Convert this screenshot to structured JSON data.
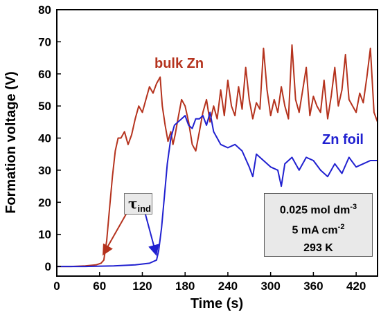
{
  "chart_data": {
    "type": "line",
    "xlabel": "Time (s)",
    "ylabel": "Formation voltage (V)",
    "xlim": [
      0,
      450
    ],
    "ylim": [
      -3,
      80
    ],
    "xticks": [
      0,
      60,
      120,
      180,
      240,
      300,
      360,
      420
    ],
    "yticks": [
      0,
      10,
      20,
      30,
      40,
      50,
      60,
      70,
      80
    ],
    "grid": false,
    "series": [
      {
        "name": "bulk Zn",
        "color": "#b5331e",
        "x": [
          0,
          20,
          40,
          55,
          62,
          66,
          70,
          74,
          78,
          82,
          86,
          90,
          95,
          100,
          105,
          110,
          115,
          120,
          125,
          130,
          135,
          140,
          145,
          148,
          152,
          156,
          160,
          163,
          166,
          170,
          175,
          180,
          185,
          190,
          195,
          200,
          205,
          210,
          215,
          220,
          225,
          230,
          235,
          240,
          245,
          250,
          255,
          260,
          265,
          270,
          275,
          280,
          285,
          290,
          295,
          300,
          305,
          310,
          315,
          320,
          325,
          330,
          335,
          340,
          345,
          350,
          355,
          360,
          365,
          370,
          375,
          380,
          385,
          390,
          395,
          400,
          405,
          410,
          415,
          420,
          425,
          430,
          435,
          440,
          445,
          450
        ],
        "y": [
          0,
          0,
          0.2,
          0.5,
          1,
          2,
          8,
          18,
          28,
          36,
          40,
          40,
          42,
          38,
          41,
          46,
          50,
          48,
          52,
          56,
          54,
          57,
          59,
          50,
          44,
          39,
          42,
          38,
          41,
          46,
          52,
          50,
          45,
          38,
          36,
          42,
          48,
          52,
          45,
          50,
          46,
          55,
          47,
          58,
          50,
          47,
          56,
          49,
          62,
          52,
          46,
          51,
          49,
          68,
          55,
          47,
          52,
          48,
          56,
          50,
          46,
          69,
          52,
          48,
          55,
          62,
          47,
          53,
          50,
          48,
          58,
          46,
          53,
          62,
          50,
          55,
          66,
          52,
          50,
          48,
          54,
          51,
          59,
          68,
          48,
          45
        ],
        "label": "bulk Zn"
      },
      {
        "name": "Zn foil",
        "color": "#2020d0",
        "x": [
          0,
          40,
          80,
          110,
          130,
          140,
          143,
          147,
          151,
          155,
          160,
          165,
          170,
          175,
          180,
          185,
          190,
          195,
          200,
          205,
          210,
          215,
          220,
          225,
          230,
          240,
          250,
          260,
          270,
          275,
          280,
          290,
          300,
          310,
          315,
          320,
          330,
          340,
          350,
          360,
          370,
          380,
          390,
          400,
          410,
          420,
          430,
          440,
          450
        ],
        "y": [
          0,
          0,
          0.2,
          0.5,
          1,
          2,
          5,
          12,
          22,
          32,
          40,
          44,
          45,
          46,
          47,
          44,
          43,
          46,
          46,
          47,
          44,
          48,
          42,
          40,
          38,
          37,
          38,
          36,
          31,
          28,
          35,
          33,
          31,
          30,
          25,
          32,
          34,
          30,
          34,
          33,
          30,
          28,
          32,
          29,
          34,
          31,
          32,
          33,
          33
        ],
        "label": "Zn foil"
      }
    ],
    "annotations": {
      "tau_symbol": "τ",
      "tau_subscript": "ind",
      "conditions": [
        "0.025 mol dm",
        "5 mA cm",
        "293 K"
      ],
      "condition_superscripts": [
        "-3",
        "-2",
        ""
      ]
    }
  }
}
